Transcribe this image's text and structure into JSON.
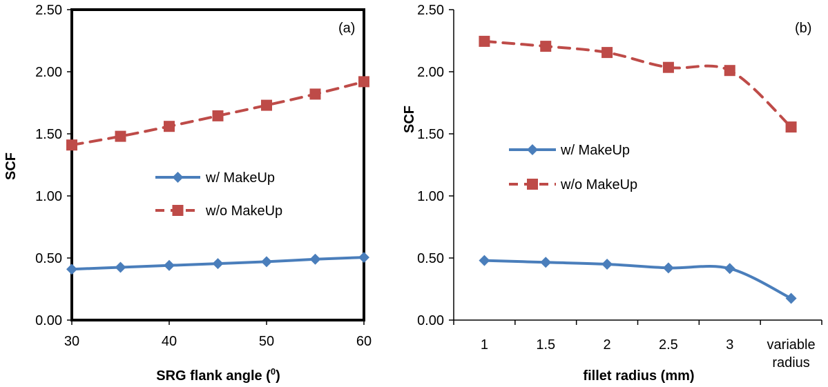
{
  "chart_data": [
    {
      "type": "line",
      "panel_label": "(a)",
      "xlabel": "SRG flank angle (",
      "xlabel_sup": "0",
      "xlabel_tail": ")",
      "ylabel": "SCF",
      "ylim": [
        0,
        2.5
      ],
      "yticks": [
        "0.00",
        "0.50",
        "1.00",
        "1.50",
        "2.00",
        "2.50"
      ],
      "x": [
        30,
        35,
        40,
        45,
        50,
        55,
        60
      ],
      "xticks": [
        "30",
        "40",
        "50",
        "60"
      ],
      "xtick_values": [
        30,
        40,
        50,
        60
      ],
      "legend_position": "center-right",
      "series": [
        {
          "name": "w/ MakeUp",
          "color": "#4A7EBB",
          "marker": "diamond",
          "dash": "solid",
          "values": [
            0.41,
            0.425,
            0.44,
            0.455,
            0.47,
            0.49,
            0.505
          ]
        },
        {
          "name": "w/o MakeUp",
          "color": "#BE4B48",
          "marker": "square",
          "dash": "dashed",
          "values": [
            1.41,
            1.48,
            1.56,
            1.645,
            1.73,
            1.82,
            1.92
          ]
        }
      ]
    },
    {
      "type": "line",
      "panel_label": "(b)",
      "xlabel": "fillet radius (mm)",
      "ylabel": "SCF",
      "ylim": [
        0,
        2.5
      ],
      "yticks": [
        "0.00",
        "0.50",
        "1.00",
        "1.50",
        "2.00",
        "2.50"
      ],
      "categories": [
        "1",
        "1.5",
        "2",
        "2.5",
        "3",
        "variable radius"
      ],
      "category_lines": [
        [
          "1"
        ],
        [
          "1.5"
        ],
        [
          "2"
        ],
        [
          "2.5"
        ],
        [
          "3"
        ],
        [
          "variable",
          "radius"
        ]
      ],
      "legend_position": "center-left",
      "series": [
        {
          "name": "w/ MakeUp",
          "color": "#4A7EBB",
          "marker": "diamond",
          "dash": "solid",
          "values": [
            0.48,
            0.465,
            0.45,
            0.42,
            0.415,
            0.175
          ]
        },
        {
          "name": "w/o MakeUp",
          "color": "#BE4B48",
          "marker": "square",
          "dash": "dashed",
          "values": [
            2.245,
            2.205,
            2.155,
            2.035,
            2.01,
            1.555
          ]
        }
      ]
    }
  ]
}
